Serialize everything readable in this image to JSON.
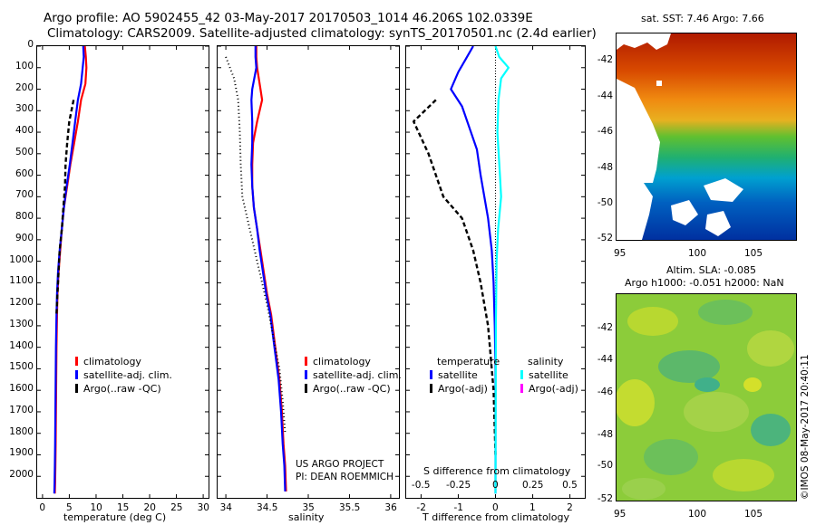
{
  "header": {
    "line1": "Argo profile: AO 5902455_42 03-May-2017 20170503_1014 46.206S 102.0339E",
    "line2": "Climatology: CARS2009. Satellite-adjusted climatology: synTS_20170501.nc (2.4d earlier)"
  },
  "colors": {
    "climatology": "#ff0000",
    "satellite": "#0000ff",
    "argo": "#000000",
    "salinity_satellite": "#00ffff",
    "salinity_argo_adj": "#ff00ff"
  },
  "panel_temp": {
    "xlabel": "temperature (deg C)",
    "legend": [
      "climatology",
      "satellite-adj. clim.",
      "Argo(..raw -QC)"
    ]
  },
  "panel_sal": {
    "xlabel": "salinity",
    "legend": [
      "climatology",
      "satellite-adj. clim.",
      "Argo(..raw -QC)"
    ],
    "credit1": "US ARGO PROJECT",
    "credit2": "PI: DEAN ROEMMICH"
  },
  "panel_diff": {
    "xlabel": "T difference from climatology",
    "s_label": "S difference from climatology",
    "legend_temp_head": "temperature",
    "legend_sal_head": "salinity",
    "legend_temp": [
      "satellite",
      "Argo(-adj)"
    ],
    "legend_sal": [
      "satellite",
      "Argo(-adj)"
    ]
  },
  "map_sst": {
    "title": "sat. SST: 7.46  Argo: 7.66",
    "yticks": [
      "-42",
      "-44",
      "-46",
      "-48",
      "-50",
      "-52"
    ],
    "xticks": [
      "95",
      "100",
      "105"
    ]
  },
  "map_sla": {
    "title1": "Altim. SLA: -0.085",
    "title2": "Argo h1000: -0.051  h2000: NaN",
    "yticks": [
      "-42",
      "-44",
      "-46",
      "-48",
      "-50",
      "-52"
    ],
    "xticks": [
      "95",
      "100",
      "105"
    ]
  },
  "footer_stamp": "©IMOS 08-May-2017 20:40:11",
  "chart_data": [
    {
      "type": "line",
      "title": "",
      "xlabel": "temperature (deg C)",
      "ylabel": "",
      "xlim": [
        -1,
        31
      ],
      "ylim": [
        2100,
        0
      ],
      "xticks": [
        0,
        5,
        10,
        15,
        20,
        25,
        30
      ],
      "yticks": [
        0,
        100,
        200,
        300,
        400,
        500,
        600,
        700,
        800,
        900,
        1000,
        1100,
        1200,
        1300,
        1400,
        1500,
        1600,
        1700,
        1800,
        1900,
        2000
      ],
      "legend": "bottom-center",
      "series": [
        {
          "name": "climatology",
          "x": [
            7.9,
            8.1,
            8.2,
            8.0,
            7.2,
            6.6,
            5.9,
            5.2,
            4.6,
            4.0,
            3.6,
            3.3,
            3.0,
            2.8,
            2.7,
            2.6,
            2.55,
            2.5,
            2.45,
            2.4,
            2.35,
            2.3
          ],
          "y": [
            0,
            50,
            100,
            175,
            250,
            350,
            450,
            550,
            650,
            750,
            850,
            950,
            1050,
            1150,
            1250,
            1400,
            1550,
            1700,
            1850,
            1950,
            2030,
            2080
          ]
        },
        {
          "name": "satellite-adj. clim.",
          "x": [
            7.6,
            7.7,
            7.5,
            7.2,
            6.6,
            6.1,
            5.6,
            5.1,
            4.5,
            4.0,
            3.6,
            3.2,
            2.9,
            2.7,
            2.6,
            2.5,
            2.45,
            2.4,
            2.35,
            2.3,
            2.25,
            2.2
          ],
          "y": [
            0,
            50,
            100,
            175,
            250,
            350,
            450,
            550,
            650,
            750,
            850,
            950,
            1050,
            1150,
            1250,
            1400,
            1550,
            1700,
            1850,
            1950,
            2030,
            2080
          ]
        },
        {
          "name": "Argo(..raw -QC)",
          "x": [
            5.8,
            5.4,
            5.0,
            4.6,
            4.3,
            4.2,
            3.9,
            3.6,
            3.2,
            3.0,
            2.8,
            2.6
          ],
          "y": [
            250,
            300,
            350,
            450,
            550,
            650,
            750,
            850,
            950,
            1050,
            1150,
            1250
          ]
        }
      ]
    },
    {
      "type": "line",
      "title": "",
      "xlabel": "salinity",
      "ylabel": "",
      "xlim": [
        33.9,
        36.1
      ],
      "ylim": [
        2100,
        0
      ],
      "xticks": [
        34,
        34.5,
        35,
        35.5,
        36
      ],
      "legend": "bottom-center",
      "series": [
        {
          "name": "climatology",
          "x": [
            34.37,
            34.37,
            34.38,
            34.42,
            34.44,
            34.38,
            34.33,
            34.32,
            34.32,
            34.34,
            34.38,
            34.42,
            34.46,
            34.5,
            34.55,
            34.6,
            34.65,
            34.68,
            34.7,
            34.72,
            34.73
          ],
          "y": [
            0,
            50,
            100,
            200,
            250,
            350,
            450,
            550,
            650,
            750,
            850,
            950,
            1050,
            1150,
            1250,
            1400,
            1550,
            1700,
            1850,
            1950,
            2070
          ]
        },
        {
          "name": "satellite-adj. clim.",
          "x": [
            34.36,
            34.36,
            34.37,
            34.32,
            34.31,
            34.32,
            34.32,
            34.31,
            34.32,
            34.34,
            34.38,
            34.41,
            34.45,
            34.49,
            34.54,
            34.59,
            34.64,
            34.67,
            34.69,
            34.71,
            34.72
          ],
          "y": [
            0,
            50,
            100,
            200,
            250,
            350,
            450,
            550,
            650,
            750,
            850,
            950,
            1050,
            1150,
            1250,
            1400,
            1550,
            1700,
            1850,
            1950,
            2070
          ]
        },
        {
          "name": "Argo(..raw -QC)",
          "x": [
            34.0,
            34.05,
            34.1,
            34.15,
            34.17,
            34.18,
            34.2,
            34.26,
            34.32,
            34.38,
            34.44,
            34.5,
            34.55,
            34.6,
            34.65,
            34.69,
            34.72
          ],
          "y": [
            50,
            100,
            150,
            250,
            400,
            550,
            700,
            800,
            900,
            1000,
            1100,
            1200,
            1300,
            1400,
            1500,
            1650,
            1800
          ]
        }
      ]
    },
    {
      "type": "line",
      "title": "",
      "xlabel": "T difference from climatology",
      "ylabel": "",
      "xlim": [
        -2.4,
        2.4
      ],
      "ylim": [
        2100,
        0
      ],
      "xticks": [
        -2,
        -1,
        0,
        1,
        2
      ],
      "secondary_xlabel": "S difference from climatology",
      "secondary_xticks": [
        -0.5,
        -0.25,
        0,
        0.25,
        0.5
      ],
      "legend": "bottom-center",
      "series": [
        {
          "name": "satellite",
          "x": [
            -0.6,
            -0.8,
            -1.0,
            -1.2,
            -0.9,
            -0.7,
            -0.5,
            -0.4,
            -0.3,
            -0.2,
            -0.1,
            -0.05,
            -0.02,
            0.0,
            0.0,
            0.0
          ],
          "y": [
            0,
            60,
            120,
            200,
            280,
            380,
            480,
            600,
            700,
            800,
            950,
            1100,
            1300,
            1500,
            1800,
            2080
          ]
        },
        {
          "name": "Argo(-adj)",
          "x": [
            -1.6,
            -2.2,
            -1.8,
            -1.4,
            -0.9,
            -0.6,
            -0.4,
            -0.2,
            -0.05,
            0.0
          ],
          "y": [
            250,
            350,
            500,
            700,
            800,
            950,
            1100,
            1300,
            1600,
            1900
          ]
        },
        {
          "name": "satellite (salinity)",
          "x": [
            0.0,
            0.1,
            0.35,
            0.15,
            0.08,
            0.05,
            0.12,
            0.15,
            0.07,
            0.03,
            0.01,
            0.0
          ],
          "y": [
            0,
            50,
            100,
            150,
            250,
            400,
            600,
            700,
            850,
            1000,
            1300,
            2080
          ]
        }
      ]
    }
  ]
}
